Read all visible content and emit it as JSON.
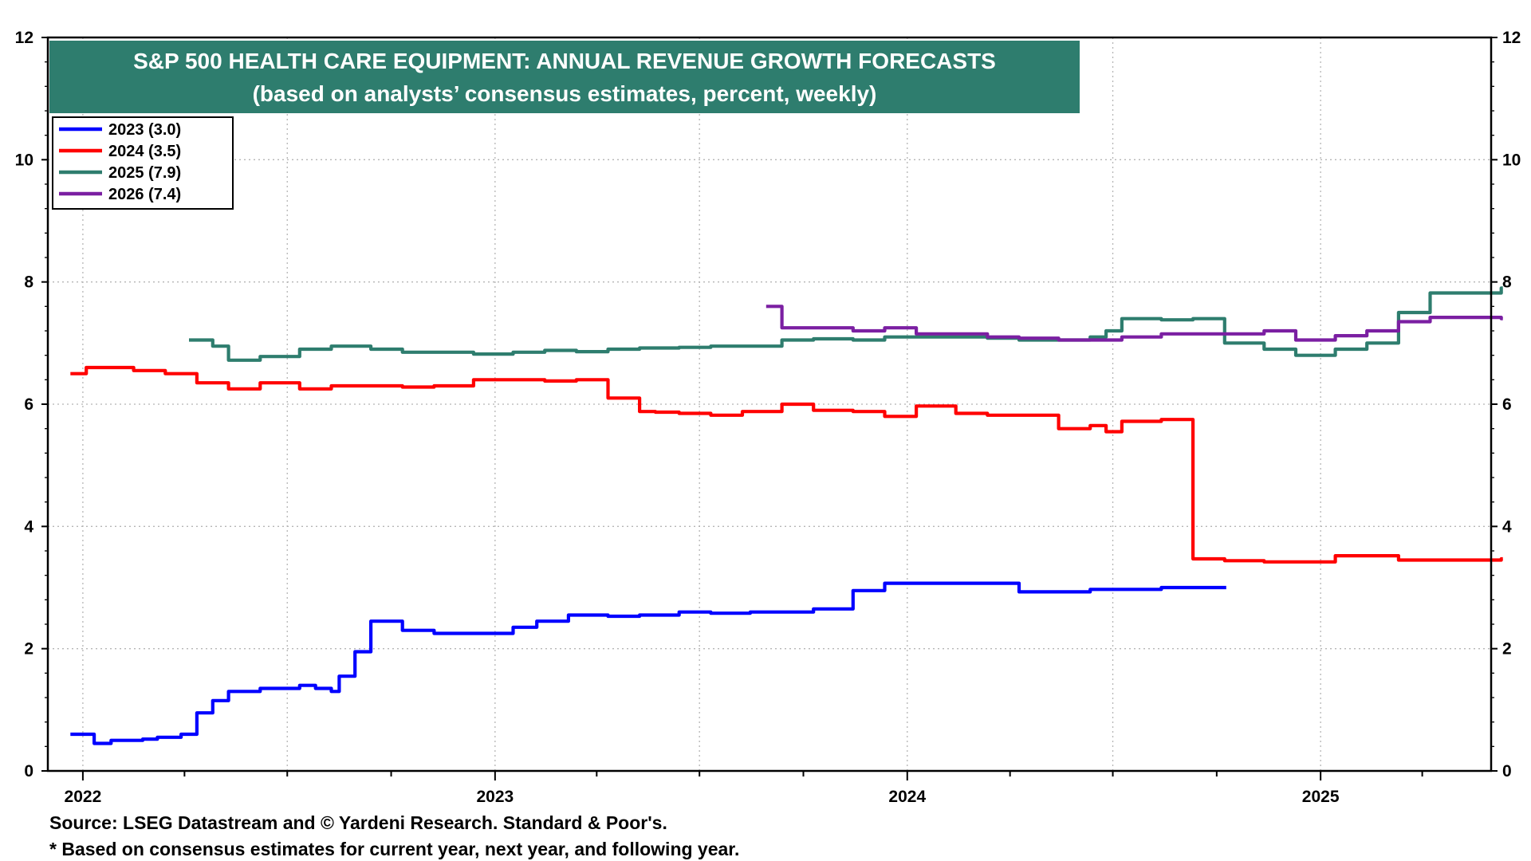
{
  "chart_data": {
    "type": "line",
    "title": "S&P 500 HEALTH CARE EQUIPMENT: ANNUAL REVENUE GROWTH FORECASTS",
    "subtitle": "(based on analysts’ consensus estimates, percent, weekly)",
    "xlabel": "",
    "ylabel": "",
    "xlim": [
      "2021-12",
      "2025-06"
    ],
    "ylim": [
      0,
      12
    ],
    "yticks": [
      0,
      2,
      4,
      6,
      8,
      10,
      12
    ],
    "ytick_labels": [
      "0",
      "2",
      "4",
      "6",
      "8",
      "10",
      "12"
    ],
    "xtick_labels": [
      "2022",
      "2023",
      "2024",
      "2025"
    ],
    "xtick_label_dates": [
      "2022-01",
      "2023-01",
      "2024-01",
      "2025-01"
    ],
    "grid": true,
    "legend_position": "top-left",
    "background_title_color": "#2e7d6e",
    "series": [
      {
        "name": "2023 (3.0)",
        "color": "#0000ff",
        "x": [
          "2021-12-21",
          "2022-01-11",
          "2022-01-26",
          "2022-02-23",
          "2022-03-08",
          "2022-03-29",
          "2022-04-12",
          "2022-04-26",
          "2022-05-10",
          "2022-06-07",
          "2022-07-12",
          "2022-07-26",
          "2022-08-09",
          "2022-08-16",
          "2022-08-30",
          "2022-09-13",
          "2022-10-11",
          "2022-11-08",
          "2022-12-13",
          "2023-01-17",
          "2023-02-07",
          "2023-03-07",
          "2023-04-11",
          "2023-05-09",
          "2023-06-13",
          "2023-07-11",
          "2023-08-15",
          "2023-09-12",
          "2023-10-10",
          "2023-11-14",
          "2023-12-12",
          "2024-02-13",
          "2024-04-09",
          "2024-06-11",
          "2024-08-13",
          "2024-10-08"
        ],
        "y": [
          0.6,
          0.45,
          0.5,
          0.52,
          0.55,
          0.6,
          0.95,
          1.15,
          1.3,
          1.35,
          1.4,
          1.35,
          1.3,
          1.55,
          1.95,
          2.45,
          2.3,
          2.25,
          2.25,
          2.35,
          2.45,
          2.55,
          2.53,
          2.55,
          2.6,
          2.58,
          2.6,
          2.6,
          2.65,
          2.95,
          3.07,
          3.07,
          2.93,
          2.97,
          3.0,
          3.0
        ]
      },
      {
        "name": "2024 (3.5)",
        "color": "#ff0000",
        "x": [
          "2021-12-21",
          "2022-01-04",
          "2022-02-15",
          "2022-03-15",
          "2022-04-12",
          "2022-05-10",
          "2022-06-07",
          "2022-07-12",
          "2022-08-09",
          "2022-09-13",
          "2022-10-11",
          "2022-11-08",
          "2022-12-13",
          "2023-01-10",
          "2023-02-14",
          "2023-03-14",
          "2023-04-11",
          "2023-05-09",
          "2023-05-23",
          "2023-06-13",
          "2023-07-11",
          "2023-08-08",
          "2023-09-12",
          "2023-10-10",
          "2023-11-14",
          "2023-12-12",
          "2024-01-09",
          "2024-02-13",
          "2024-03-12",
          "2024-04-09",
          "2024-05-14",
          "2024-06-11",
          "2024-06-25",
          "2024-07-09",
          "2024-08-13",
          "2024-09-10",
          "2024-10-08",
          "2024-11-12",
          "2025-01-14",
          "2025-03-11",
          "2025-06-10"
        ],
        "y": [
          6.5,
          6.6,
          6.55,
          6.5,
          6.35,
          6.25,
          6.35,
          6.25,
          6.3,
          6.3,
          6.28,
          6.3,
          6.4,
          6.4,
          6.38,
          6.4,
          6.1,
          5.88,
          5.87,
          5.85,
          5.82,
          5.88,
          6.0,
          5.9,
          5.88,
          5.8,
          5.97,
          5.85,
          5.82,
          5.82,
          5.6,
          5.65,
          5.55,
          5.72,
          5.75,
          3.47,
          3.44,
          3.42,
          3.52,
          3.45,
          3.47
        ]
      },
      {
        "name": "2025 (7.9)",
        "color": "#2e7d6e",
        "x": [
          "2022-04-05",
          "2022-04-26",
          "2022-05-10",
          "2022-06-07",
          "2022-07-12",
          "2022-08-09",
          "2022-09-13",
          "2022-10-11",
          "2022-11-08",
          "2022-12-13",
          "2023-01-17",
          "2023-02-14",
          "2023-03-14",
          "2023-04-11",
          "2023-05-09",
          "2023-06-13",
          "2023-07-11",
          "2023-08-08",
          "2023-09-12",
          "2023-10-10",
          "2023-11-14",
          "2023-12-12",
          "2024-01-09",
          "2024-02-13",
          "2024-03-12",
          "2024-04-09",
          "2024-05-14",
          "2024-06-11",
          "2024-06-25",
          "2024-07-09",
          "2024-08-13",
          "2024-09-10",
          "2024-10-08",
          "2024-11-12",
          "2024-12-10",
          "2025-01-14",
          "2025-02-11",
          "2025-03-11",
          "2025-04-08",
          "2025-06-10"
        ],
        "y": [
          7.05,
          6.95,
          6.72,
          6.78,
          6.9,
          6.95,
          6.9,
          6.85,
          6.85,
          6.82,
          6.85,
          6.88,
          6.86,
          6.9,
          6.92,
          6.93,
          6.95,
          6.95,
          7.05,
          7.07,
          7.05,
          7.1,
          7.1,
          7.1,
          7.08,
          7.05,
          7.05,
          7.1,
          7.2,
          7.4,
          7.38,
          7.4,
          7.0,
          6.9,
          6.8,
          6.9,
          7.0,
          7.5,
          7.82,
          7.9
        ]
      },
      {
        "name": "2026 (7.4)",
        "color": "#7b1fa2",
        "x": [
          "2023-08-29",
          "2023-09-12",
          "2023-10-10",
          "2023-11-14",
          "2023-12-12",
          "2024-01-09",
          "2024-02-13",
          "2024-03-12",
          "2024-04-09",
          "2024-05-14",
          "2024-06-11",
          "2024-07-09",
          "2024-08-13",
          "2024-09-10",
          "2024-10-08",
          "2024-11-12",
          "2024-12-10",
          "2025-01-14",
          "2025-02-11",
          "2025-03-11",
          "2025-04-08",
          "2025-06-10"
        ],
        "y": [
          7.6,
          7.25,
          7.25,
          7.2,
          7.25,
          7.15,
          7.15,
          7.1,
          7.08,
          7.05,
          7.05,
          7.1,
          7.15,
          7.15,
          7.15,
          7.2,
          7.05,
          7.12,
          7.2,
          7.35,
          7.42,
          7.4
        ]
      }
    ],
    "source_note": "Source: LSEG Datastream and © Yardeni Research. Standard & Poor's.",
    "footnote": "* Based on consensus estimates for current year, next year, and following year."
  }
}
